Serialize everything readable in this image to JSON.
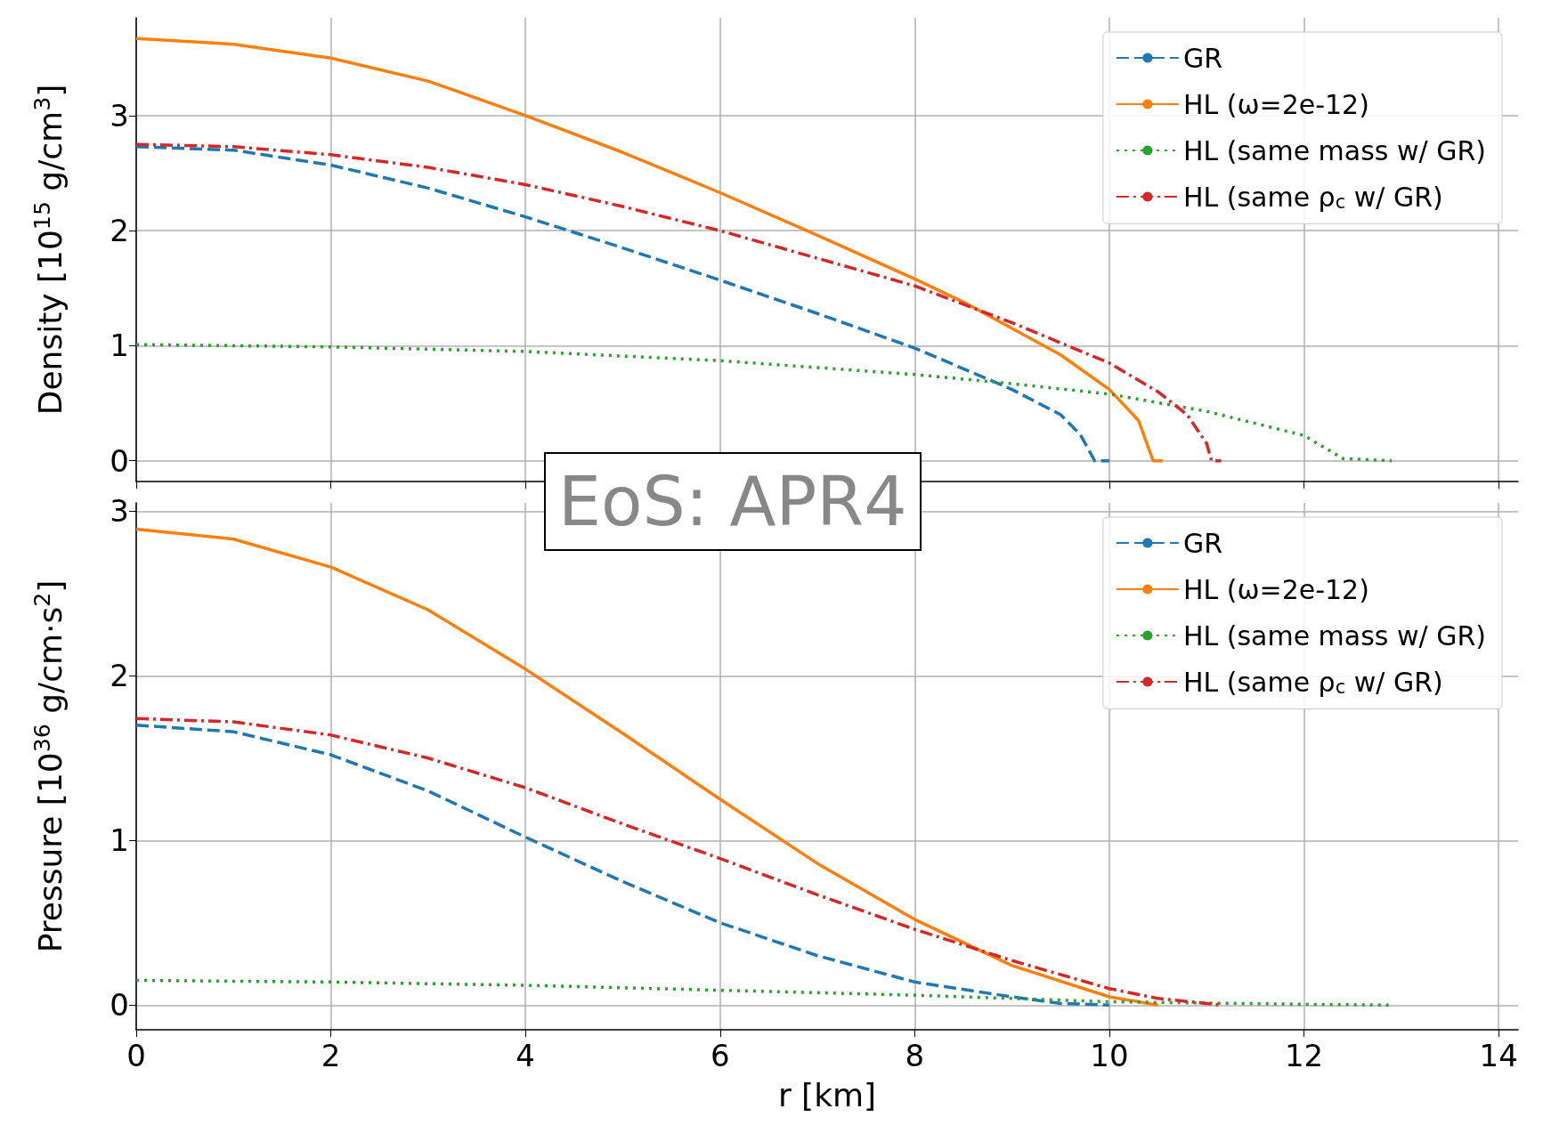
{
  "chart_data": [
    {
      "type": "line",
      "ylabel": "Density [10$^{15}$ g/cm$^{3}$]",
      "xlim": [
        0,
        14.2
      ],
      "xticks": [
        0,
        2,
        4,
        6,
        8,
        10,
        12,
        14
      ],
      "ylim": [
        -0.18,
        3.85
      ],
      "yticks": [
        0,
        1,
        2,
        3
      ],
      "grid": true,
      "legend": "top right",
      "tick_labels": "y",
      "annotations": [
        "EoS: APR4"
      ],
      "series": [
        {
          "name": "GR",
          "color": "#1f77b4",
          "line_style": "dashed",
          "x": [
            0,
            1,
            2,
            3,
            4,
            5,
            6,
            7,
            8,
            8.5,
            9,
            9.5,
            9.7,
            9.85,
            10
          ],
          "values": [
            2.73,
            2.7,
            2.57,
            2.37,
            2.12,
            1.85,
            1.57,
            1.28,
            0.98,
            0.8,
            0.62,
            0.4,
            0.23,
            0,
            0
          ]
        },
        {
          "name": "HL (ω=2e-12)",
          "color": "#ff7f0e",
          "line_style": "solid",
          "x": [
            0,
            1,
            2,
            3,
            4,
            5,
            6,
            7,
            8,
            8.5,
            9,
            9.5,
            10,
            10.3,
            10.45,
            10.55
          ],
          "values": [
            3.67,
            3.62,
            3.5,
            3.3,
            3.0,
            2.68,
            2.33,
            1.96,
            1.58,
            1.38,
            1.15,
            0.92,
            0.62,
            0.35,
            0,
            0
          ]
        },
        {
          "name": "HL (same mass w/ GR)",
          "color": "#2ca02c",
          "line_style": "dotted",
          "x": [
            0,
            2,
            4,
            6,
            8,
            9,
            10,
            11,
            12,
            12.4,
            12.9
          ],
          "values": [
            1.01,
            0.99,
            0.95,
            0.87,
            0.75,
            0.67,
            0.58,
            0.43,
            0.22,
            0.02,
            0
          ]
        },
        {
          "name": "HL (same ρ$_{c}$ w/ GR)",
          "color": "#d62728",
          "line_style": "dashdot",
          "x": [
            0,
            1,
            2,
            3,
            4,
            5,
            6,
            7,
            8,
            9,
            10,
            10.5,
            10.8,
            11,
            11.05,
            11.15
          ],
          "values": [
            2.75,
            2.73,
            2.66,
            2.55,
            2.4,
            2.21,
            2.0,
            1.76,
            1.52,
            1.2,
            0.85,
            0.6,
            0.4,
            0.15,
            0,
            0
          ]
        }
      ]
    },
    {
      "type": "line",
      "xlabel": "r [km]",
      "ylabel": "Pressure [10$^{36}$ g/cm·s$^{2}$]",
      "xlim": [
        0,
        14.2
      ],
      "xticks": [
        0,
        2,
        4,
        6,
        8,
        10,
        12,
        14
      ],
      "ylim": [
        -0.15,
        3.05
      ],
      "yticks": [
        0,
        1,
        2,
        3
      ],
      "grid": true,
      "legend": "top right",
      "series": [
        {
          "name": "GR",
          "color": "#1f77b4",
          "line_style": "dashed",
          "x": [
            0,
            1,
            2,
            3,
            4,
            5,
            6,
            7,
            8,
            9,
            9.5,
            10
          ],
          "values": [
            1.7,
            1.66,
            1.52,
            1.3,
            1.02,
            0.75,
            0.5,
            0.3,
            0.14,
            0.05,
            0.01,
            0
          ]
        },
        {
          "name": "HL (ω=2e-12)",
          "color": "#ff7f0e",
          "line_style": "solid",
          "x": [
            0,
            1,
            2,
            3,
            4,
            5,
            6,
            7,
            8,
            9,
            10,
            10.5
          ],
          "values": [
            2.89,
            2.83,
            2.66,
            2.4,
            2.04,
            1.65,
            1.25,
            0.86,
            0.52,
            0.24,
            0.05,
            0
          ]
        },
        {
          "name": "HL (same mass w/ GR)",
          "color": "#2ca02c",
          "line_style": "dotted",
          "x": [
            0,
            2,
            4,
            6,
            8,
            10,
            12,
            12.9
          ],
          "values": [
            0.15,
            0.14,
            0.12,
            0.09,
            0.06,
            0.02,
            0.005,
            0
          ]
        },
        {
          "name": "HL (same ρ$_{c}$ w/ GR)",
          "color": "#d62728",
          "line_style": "dashdot",
          "x": [
            0,
            1,
            2,
            3,
            4,
            5,
            6,
            7,
            8,
            9,
            10,
            10.5,
            11,
            11.15
          ],
          "values": [
            1.74,
            1.72,
            1.64,
            1.5,
            1.32,
            1.1,
            0.89,
            0.67,
            0.46,
            0.27,
            0.1,
            0.04,
            0.01,
            0
          ]
        }
      ]
    }
  ]
}
